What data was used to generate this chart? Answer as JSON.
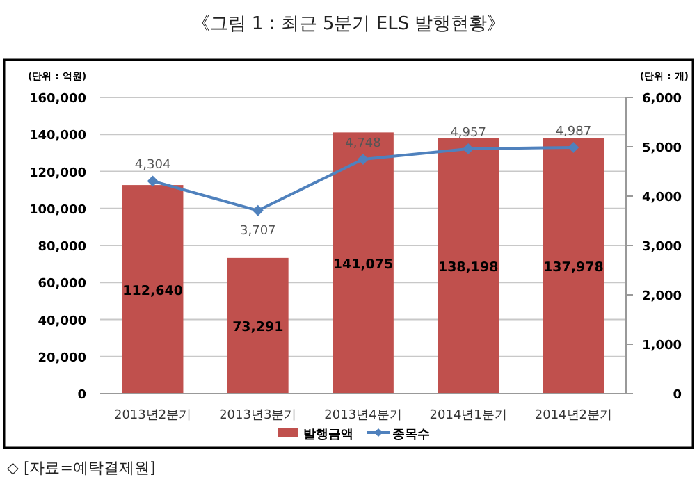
{
  "chart_data": {
    "type": "bar",
    "title": "《그림 1 : 최근 5분기 ELS 발행현황》",
    "ylabel": "(단위 : 억원)",
    "y2label": "(단위 : 개)",
    "annotations": [
      "◇ [자료=예탁결제원]"
    ],
    "categories": [
      "2013년2분기",
      "2013년3분기",
      "2013년4분기",
      "2014년1분기",
      "2014년2분기"
    ],
    "series": [
      {
        "name": "발행금액",
        "color": "#c0504d",
        "values": [
          112640,
          73291,
          141075,
          138198,
          137978
        ],
        "value_labels": [
          "112,640",
          "73,291",
          "141,075",
          "138,198",
          "137,978"
        ]
      },
      {
        "name": "종목수",
        "type": "line",
        "axis": "y2",
        "color": "#4f81bd",
        "marker": "diamond",
        "values": [
          4304,
          3707,
          4748,
          4957,
          4987
        ],
        "value_labels": [
          "4,304",
          "3,707",
          "4,748",
          "4,957",
          "4,987"
        ]
      }
    ],
    "ylim": [
      0,
      160000
    ],
    "yticks": [
      {
        "value": 0,
        "label": "0"
      },
      {
        "value": 20000,
        "label": "20,000"
      },
      {
        "value": 40000,
        "label": "40,000"
      },
      {
        "value": 60000,
        "label": "60,000"
      },
      {
        "value": 80000,
        "label": "80,000"
      },
      {
        "value": 100000,
        "label": "100,000"
      },
      {
        "value": 120000,
        "label": "120,000"
      },
      {
        "value": 140000,
        "label": "140,000"
      },
      {
        "value": 160000,
        "label": "160,000"
      }
    ],
    "y2lim": [
      0,
      6000
    ],
    "y2ticks": [
      {
        "value": 0,
        "label": "0"
      },
      {
        "value": 1000,
        "label": "1,000"
      },
      {
        "value": 2000,
        "label": "2,000"
      },
      {
        "value": 3000,
        "label": "3,000"
      },
      {
        "value": 4000,
        "label": "4,000"
      },
      {
        "value": 5000,
        "label": "5,000"
      },
      {
        "value": 6000,
        "label": "6,000"
      }
    ],
    "grid": "y",
    "legend": "bottom"
  }
}
